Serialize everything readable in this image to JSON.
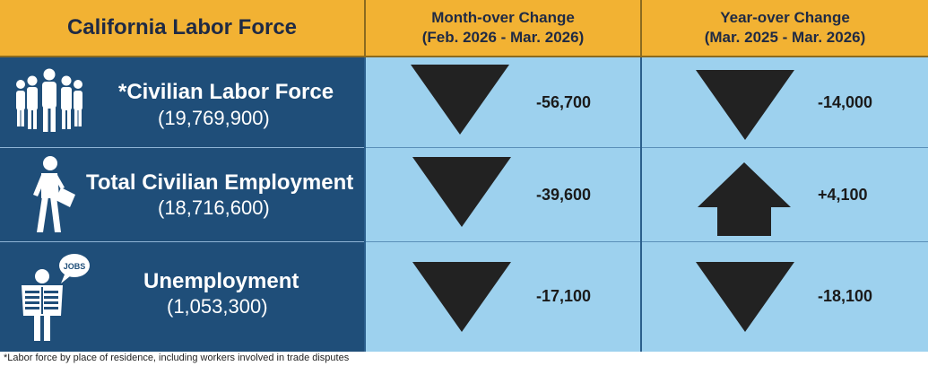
{
  "header": {
    "title": "California Labor Force",
    "month_line1": "Month-over Change",
    "month_line2": "(Feb. 2026 - Mar. 2026)",
    "year_line1": "Year-over Change",
    "year_line2": "(Mar. 2025 - Mar. 2026)"
  },
  "rows": [
    {
      "label": "*Civilian Labor Force",
      "value": "(19,769,900)",
      "icon": "group-of-people-icon",
      "month_change": "-56,700",
      "month_direction": "down",
      "year_change": "-14,000",
      "year_direction": "down"
    },
    {
      "label": "Total Civilian Employment",
      "value": "(18,716,600)",
      "icon": "walking-worker-icon",
      "month_change": "-39,600",
      "month_direction": "down",
      "year_change": "+4,100",
      "year_direction": "up"
    },
    {
      "label": "Unemployment",
      "value": "(1,053,300)",
      "icon": "job-seeker-newspaper-icon",
      "month_change": "-17,100",
      "month_direction": "down",
      "year_change": "-18,100",
      "year_direction": "down"
    }
  ],
  "jobs_bubble_text": "JOBS",
  "footnote": "*Labor force by place of residence, including workers involved in trade disputes",
  "colors": {
    "header_bg": "#f2b233",
    "label_bg": "#1f4e79",
    "cell_bg": "#9dd1ee",
    "arrow": "#222222"
  }
}
